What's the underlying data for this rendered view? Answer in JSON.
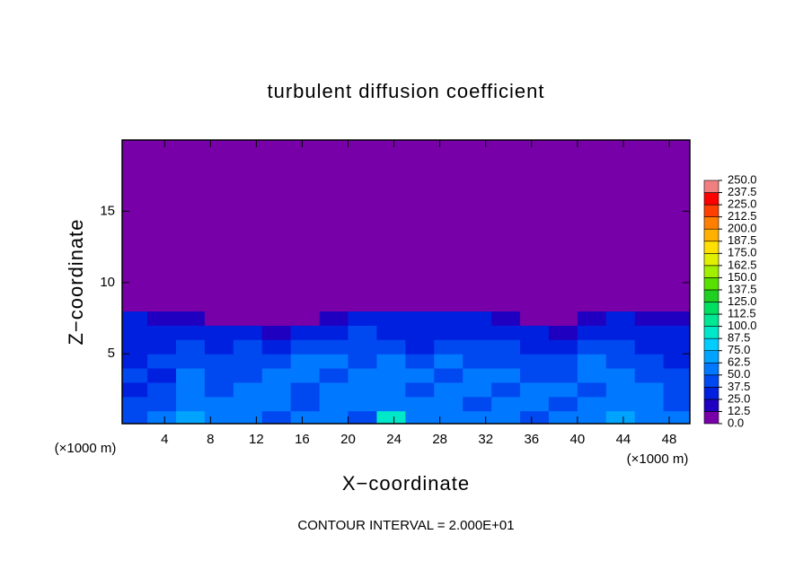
{
  "chart_data": {
    "type": "contour",
    "title": "turbulent diffusion coefficient",
    "x_label": "X−coordinate",
    "y_label": "Z−coordinate",
    "x_unit_label": "(×1000 m)",
    "x_unit_label_right": "(×1000 m)",
    "footnote": "CONTOUR INTERVAL = 2.000E+01",
    "xlim": [
      0.3,
      49.8
    ],
    "ylim": [
      0.1,
      20
    ],
    "xticks": [
      4,
      8,
      12,
      16,
      20,
      24,
      28,
      32,
      36,
      40,
      44,
      48
    ],
    "yticks": [
      5,
      10,
      15
    ],
    "x_edges": [
      0,
      2.5,
      5,
      7.5,
      10,
      12.5,
      15,
      17.5,
      20,
      22.5,
      25,
      27.5,
      30,
      32.5,
      35,
      37.5,
      40,
      42.5,
      45,
      47.5,
      50
    ],
    "z_edges": [
      0,
      1,
      2,
      3,
      4,
      5,
      6,
      7,
      8,
      20
    ],
    "field": [
      [
        45,
        50,
        70,
        55,
        50,
        45,
        55,
        50,
        45,
        90,
        55,
        50,
        60,
        55,
        45,
        50,
        60,
        70,
        55,
        50
      ],
      [
        40,
        45,
        60,
        50,
        55,
        50,
        45,
        55,
        50,
        60,
        55,
        50,
        45,
        55,
        50,
        45,
        55,
        60,
        50,
        45
      ],
      [
        35,
        40,
        55,
        45,
        50,
        55,
        45,
        50,
        55,
        50,
        45,
        55,
        50,
        45,
        55,
        50,
        45,
        55,
        50,
        40
      ],
      [
        40,
        35,
        50,
        45,
        40,
        50,
        60,
        45,
        50,
        55,
        50,
        45,
        55,
        50,
        40,
        45,
        55,
        50,
        45,
        40
      ],
      [
        35,
        40,
        45,
        40,
        45,
        40,
        50,
        55,
        45,
        50,
        45,
        50,
        45,
        40,
        45,
        40,
        50,
        45,
        40,
        35
      ],
      [
        30,
        35,
        40,
        35,
        40,
        35,
        45,
        40,
        45,
        40,
        35,
        40,
        45,
        40,
        35,
        30,
        40,
        45,
        35,
        30
      ],
      [
        30,
        30,
        35,
        25,
        30,
        20,
        25,
        35,
        40,
        35,
        30,
        35,
        30,
        35,
        30,
        15,
        25,
        35,
        30,
        25
      ],
      [
        25,
        20,
        15,
        5,
        0,
        0,
        0,
        20,
        25,
        30,
        25,
        30,
        25,
        20,
        10,
        0,
        15,
        25,
        20,
        20
      ],
      [
        0,
        0,
        0,
        0,
        0,
        0,
        0,
        0,
        0,
        0,
        0,
        0,
        0,
        0,
        0,
        0,
        0,
        0,
        0,
        0
      ]
    ],
    "colorbar_ticks": [
      {
        "value": 0,
        "label": "0.0"
      },
      {
        "value": 12.5,
        "label": "12.5"
      },
      {
        "value": 25,
        "label": "25.0"
      },
      {
        "value": 37.5,
        "label": "37.5"
      },
      {
        "value": 50,
        "label": "50.0"
      },
      {
        "value": 62.5,
        "label": "62.5"
      },
      {
        "value": 75,
        "label": "75.0"
      },
      {
        "value": 87.5,
        "label": "87.5"
      },
      {
        "value": 100,
        "label": "100.0"
      },
      {
        "value": 112.5,
        "label": "112.5"
      },
      {
        "value": 125,
        "label": "125.0"
      },
      {
        "value": 137.5,
        "label": "137.5"
      },
      {
        "value": 150,
        "label": "150.0"
      },
      {
        "value": 162.5,
        "label": "162.5"
      },
      {
        "value": 175,
        "label": "175.0"
      },
      {
        "value": 187.5,
        "label": "187.5"
      },
      {
        "value": 200,
        "label": "200.0"
      },
      {
        "value": 212.5,
        "label": "212.5"
      },
      {
        "value": 225,
        "label": "225.0"
      },
      {
        "value": 237.5,
        "label": "237.5"
      },
      {
        "value": 250,
        "label": "250.0"
      }
    ],
    "colors": [
      "#7800a8",
      "#2000c0",
      "#0020e0",
      "#0048f0",
      "#0078ff",
      "#00a4ff",
      "#00ccff",
      "#00e8c8",
      "#00e894",
      "#00e060",
      "#20d020",
      "#58e000",
      "#a0f000",
      "#e0f000",
      "#ffe000",
      "#ffb000",
      "#ff8000",
      "#ff4000",
      "#ff0000",
      "#f08080"
    ]
  }
}
